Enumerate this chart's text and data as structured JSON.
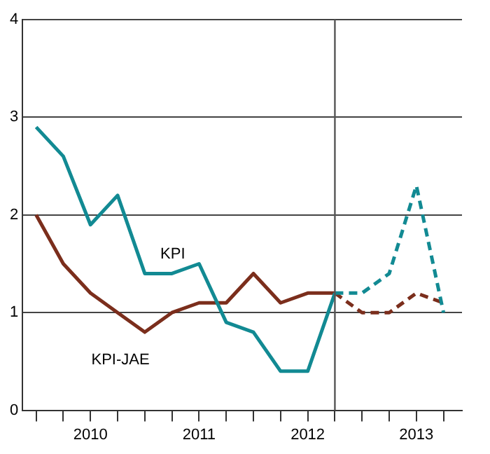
{
  "chart_data": {
    "type": "line",
    "x": [
      2009.75,
      2010.0,
      2010.25,
      2010.5,
      2010.75,
      2011.0,
      2011.25,
      2011.5,
      2011.75,
      2012.0,
      2012.25,
      2012.5,
      2012.75,
      2013.0,
      2013.25,
      2013.5
    ],
    "series": [
      {
        "name": "KPI",
        "color": "#128a93",
        "line_style": "solid",
        "values": [
          2.9,
          2.6,
          1.9,
          2.2,
          1.4,
          1.4,
          1.5,
          0.9,
          0.8,
          0.4,
          0.4,
          1.2,
          null,
          null,
          null,
          null
        ]
      },
      {
        "name": "KPI-JAE",
        "color": "#7b2e1c",
        "line_style": "solid",
        "values": [
          2.0,
          1.5,
          1.2,
          1.0,
          0.8,
          1.0,
          1.1,
          1.1,
          1.4,
          1.1,
          1.2,
          1.2,
          null,
          null,
          null,
          null
        ]
      },
      {
        "color": "#128a93",
        "line_style": "dashed",
        "values": [
          null,
          null,
          null,
          null,
          null,
          null,
          null,
          null,
          null,
          null,
          null,
          1.2,
          1.2,
          1.4,
          2.3,
          1.0
        ]
      },
      {
        "color": "#7b2e1c",
        "line_style": "dashed",
        "values": [
          null,
          null,
          null,
          null,
          null,
          null,
          null,
          null,
          null,
          null,
          null,
          1.2,
          1.0,
          1.0,
          1.2,
          1.1
        ]
      }
    ],
    "xlim": [
      2009.625,
      2013.67
    ],
    "xticks": [
      {
        "value": 2009.75,
        "label": null
      },
      {
        "value": 2010.0,
        "label": null
      },
      {
        "value": 2010.25,
        "label": "2010"
      },
      {
        "value": 2010.5,
        "label": null
      },
      {
        "value": 2010.75,
        "label": null
      },
      {
        "value": 2011.0,
        "label": null
      },
      {
        "value": 2011.25,
        "label": "2011"
      },
      {
        "value": 2011.5,
        "label": null
      },
      {
        "value": 2011.75,
        "label": null
      },
      {
        "value": 2012.0,
        "label": null
      },
      {
        "value": 2012.25,
        "label": "2012"
      },
      {
        "value": 2012.5,
        "label": null
      },
      {
        "value": 2012.75,
        "label": null
      },
      {
        "value": 2013.0,
        "label": null
      },
      {
        "value": 2013.25,
        "label": "2013"
      },
      {
        "value": 2013.5,
        "label": null
      }
    ],
    "ylim": [
      0,
      4
    ],
    "yticks": [
      0,
      1,
      2,
      3,
      4
    ],
    "grid": "y",
    "legend": false,
    "marker": "none",
    "ref_lines": [
      {
        "axis": "x",
        "value": 2012.5,
        "color": "#555555",
        "line_style": "solid"
      }
    ]
  }
}
